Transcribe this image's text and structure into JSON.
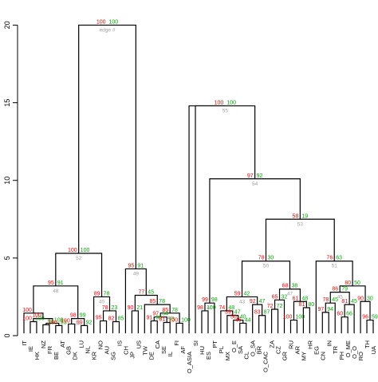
{
  "colors": {
    "au": "#ff0000",
    "bp": "#00aa00",
    "edge": "#a0a0a0",
    "line": "#000000"
  },
  "legend": {
    "au": "au",
    "bp": "bp",
    "edge": "edge #"
  },
  "chart_data": {
    "type": "dendrogram",
    "ylim": [
      0,
      21
    ],
    "yticks": [
      0,
      5,
      10,
      15,
      20
    ],
    "ytick_labels": [
      "0",
      "5",
      "10",
      "15",
      "20"
    ],
    "leaves": [
      "IT",
      "IE",
      "HK",
      "NZ",
      "FR",
      "BE",
      "AT",
      "GB",
      "DK",
      "LU",
      "NL",
      "KR",
      "NO",
      "AU",
      "SG",
      "IS",
      "CH",
      "JP",
      "US",
      "TW",
      "DE",
      "CA",
      "SE",
      "IL",
      "FI",
      "AF",
      "O_ASIA",
      "SI",
      "HU",
      "ES",
      "PT",
      "PL",
      "MX",
      "O_E",
      "SA",
      "CL",
      "O_SA",
      "BR",
      "O_CAC",
      "ZA",
      "CZ",
      "GR",
      "RU",
      "AR",
      "MY",
      "HR",
      "EG",
      "CN",
      "IN",
      "TR",
      "PH",
      "O_ME",
      "O_O",
      "RO",
      "TH",
      "UA"
    ],
    "nodes": [
      {
        "id": "n1",
        "children": [
          "IE",
          "HK"
        ],
        "height": 0.9,
        "au": "100",
        "bp": "100"
      },
      {
        "id": "n2",
        "children": [
          "NZ",
          "FR"
        ],
        "height": 0.7,
        "au": "",
        "bp": "91"
      },
      {
        "id": "n3",
        "children": [
          "BE",
          "AT"
        ],
        "height": 0.65,
        "au": "100",
        "bp": "93"
      },
      {
        "id": "n4",
        "children": [
          "n2",
          "n3"
        ],
        "height": 0.8,
        "au": "",
        "bp": "100"
      },
      {
        "id": "n5",
        "children": [
          "n1",
          "n4"
        ],
        "height": 1.1,
        "au": "100",
        "bp": ""
      },
      {
        "id": "n6",
        "children": [
          "IT",
          "n5"
        ],
        "height": 1.45,
        "au": "100",
        "bp": ""
      },
      {
        "id": "n7",
        "children": [
          "GB",
          "DK"
        ],
        "height": 0.75,
        "au": "100",
        "bp": ""
      },
      {
        "id": "n8",
        "children": [
          "LU",
          "NL"
        ],
        "height": 0.65,
        "au": "89",
        "bp": "92"
      },
      {
        "id": "n9",
        "children": [
          "n7",
          "n8"
        ],
        "height": 1.1,
        "au": "98",
        "bp": "99"
      },
      {
        "id": "n10",
        "children": [
          "n6",
          "n9"
        ],
        "height": 3.2,
        "au": "95",
        "bp": "91"
      },
      {
        "id": "n11",
        "children": [
          "NO",
          "AU"
        ],
        "height": 0.95,
        "au": "95",
        "bp": ""
      },
      {
        "id": "n12",
        "children": [
          "SG",
          "IS"
        ],
        "height": 0.9,
        "au": "82",
        "bp": "85"
      },
      {
        "id": "n13",
        "children": [
          "n11",
          "n12"
        ],
        "height": 1.6,
        "au": "78",
        "bp": "23"
      },
      {
        "id": "n14",
        "children": [
          "KR",
          "n13"
        ],
        "height": 2.5,
        "au": "89",
        "bp": "78"
      },
      {
        "id": "n15",
        "children": [
          "n10",
          "n14"
        ],
        "height": 5.3,
        "au": "100",
        "bp": "100"
      },
      {
        "id": "n16",
        "children": [
          "JP",
          "US"
        ],
        "height": 1.6,
        "au": "90",
        "bp": "21"
      },
      {
        "id": "n17",
        "children": [
          "DE",
          "CA"
        ],
        "height": 0.95,
        "au": "91",
        "bp": "95"
      },
      {
        "id": "n18",
        "children": [
          "SE",
          "IL"
        ],
        "height": 0.85,
        "au": "81",
        "bp": "93"
      },
      {
        "id": "n19",
        "children": [
          "n17",
          "n18"
        ],
        "height": 1.2,
        "au": "97",
        "bp": "54"
      },
      {
        "id": "n20",
        "children": [
          "FI",
          "AF"
        ],
        "height": 0.8,
        "au": "100",
        "bp": "100"
      },
      {
        "id": "n21",
        "children": [
          "n19",
          "n20"
        ],
        "height": 1.45,
        "au": "85",
        "bp": "78"
      },
      {
        "id": "n22",
        "children": [
          "TW",
          "n21"
        ],
        "height": 2.0,
        "au": "85",
        "bp": "78"
      },
      {
        "id": "n23",
        "children": [
          "n16",
          "n22"
        ],
        "height": 2.6,
        "au": "77",
        "bp": "45"
      },
      {
        "id": "n24",
        "children": [
          "CH",
          "n23"
        ],
        "height": 4.3,
        "au": "95",
        "bp": "91"
      },
      {
        "id": "n25",
        "children": [
          "n15",
          "n24"
        ],
        "height": 20.0,
        "au": "100",
        "bp": "100"
      },
      {
        "id": "n26",
        "children": [
          "HU",
          "ES"
        ],
        "height": 1.6,
        "au": "98",
        "bp": "100"
      },
      {
        "id": "n27",
        "children": [
          "n26",
          "PT"
        ],
        "height": 2.1,
        "au": "99",
        "bp": "98"
      },
      {
        "id": "n28",
        "children": [
          "SA",
          "CL"
        ],
        "height": 0.8,
        "au": "46",
        "bp": "44"
      },
      {
        "id": "n29",
        "children": [
          "O_E",
          "n28"
        ],
        "height": 1.0,
        "au": "50",
        "bp": "40"
      },
      {
        "id": "n30",
        "children": [
          "MX",
          "n29"
        ],
        "height": 1.3,
        "au": "39",
        "bp": "47"
      },
      {
        "id": "n31",
        "children": [
          "PL",
          "n30"
        ],
        "height": 1.6,
        "au": "74",
        "bp": "48"
      },
      {
        "id": "n32",
        "children": [
          "BR",
          "O_CAC"
        ],
        "height": 1.3,
        "au": "83",
        "bp": "87"
      },
      {
        "id": "n33",
        "children": [
          "O_SA",
          "n32"
        ],
        "height": 2.0,
        "au": "92",
        "bp": "47"
      },
      {
        "id": "n34",
        "children": [
          "n31",
          "n33"
        ],
        "height": 2.5,
        "au": "59",
        "bp": "42"
      },
      {
        "id": "n35",
        "children": [
          "ZA",
          "CZ"
        ],
        "height": 1.7,
        "au": "72",
        "bp": "72"
      },
      {
        "id": "n36",
        "children": [
          "n35",
          "GR"
        ],
        "height": 2.3,
        "au": "65",
        "bp": "32"
      },
      {
        "id": "n37",
        "children": [
          "RU",
          "AR"
        ],
        "height": 1.0,
        "au": "100",
        "bp": "100"
      },
      {
        "id": "n38",
        "children": [
          "MY",
          "HR"
        ],
        "height": 1.8,
        "au": "81",
        "bp": "80"
      },
      {
        "id": "n39",
        "children": [
          "n37",
          "n38"
        ],
        "height": 2.2,
        "au": "61",
        "bp": "48"
      },
      {
        "id": "n40",
        "children": [
          "n36",
          "n39"
        ],
        "height": 3.0,
        "au": "68",
        "bp": "38"
      },
      {
        "id": "n41",
        "children": [
          "n34",
          "n40"
        ],
        "height": 4.8,
        "au": "78",
        "bp": "30"
      },
      {
        "id": "n42",
        "children": [
          "CN",
          "IN"
        ],
        "height": 1.5,
        "au": "97",
        "bp": "94"
      },
      {
        "id": "n43",
        "children": [
          "n42",
          "TR"
        ],
        "height": 2.1,
        "au": "78",
        "bp": "45"
      },
      {
        "id": "n44",
        "children": [
          "PH",
          "O_ME"
        ],
        "height": 1.2,
        "au": "60",
        "bp": "66"
      },
      {
        "id": "n45",
        "children": [
          "n44",
          "O_O"
        ],
        "height": 2.0,
        "au": "81",
        "bp": "45"
      },
      {
        "id": "n46",
        "children": [
          "n43",
          "n45"
        ],
        "height": 2.8,
        "au": "86",
        "bp": "79"
      },
      {
        "id": "n47",
        "children": [
          "TH",
          "UA"
        ],
        "height": 1.0,
        "au": "96",
        "bp": "59"
      },
      {
        "id": "n48",
        "children": [
          "RO",
          "n47"
        ],
        "height": 2.2,
        "au": "90",
        "bp": "30"
      },
      {
        "id": "n49",
        "children": [
          "n46",
          "n48"
        ],
        "height": 3.2,
        "au": "80",
        "bp": "50"
      },
      {
        "id": "n50",
        "children": [
          "EG",
          "n49"
        ],
        "height": 4.8,
        "au": "76",
        "bp": "63"
      },
      {
        "id": "n51",
        "children": [
          "n41",
          "n50"
        ],
        "height": 7.5,
        "au": "58",
        "bp": "19"
      },
      {
        "id": "n52",
        "children": [
          "n27",
          "n51"
        ],
        "height": 10.1,
        "au": "97",
        "bp": "92"
      },
      {
        "id": "n53",
        "children": [
          "SI",
          "n52"
        ],
        "height": 14.8,
        "au": "100",
        "bp": "100"
      },
      {
        "id": "n54",
        "children": [
          "O_ASIA",
          "n53"
        ],
        "height": 14.8,
        "au": "",
        "bp": ""
      }
    ],
    "edge_numbers": {
      "n25": "edge #",
      "n15": "52",
      "n10": "48",
      "n14": "40",
      "n24": "49",
      "n53": "55",
      "n52": "54",
      "n51": "53",
      "n41": "50",
      "n50": "51",
      "n27": "41",
      "n34": "43",
      "n40": "47",
      "n46": "45",
      "n9": "39",
      "n21": "44"
    }
  }
}
